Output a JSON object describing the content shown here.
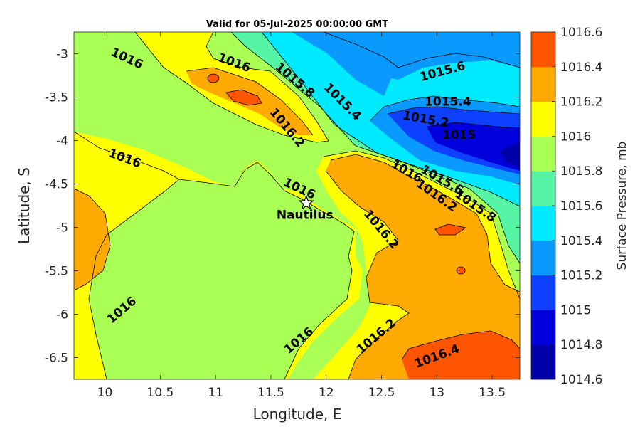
{
  "chart_data": {
    "type": "contour",
    "title": "Valid for 05-Jul-2025 00:00:00 GMT",
    "xlabel": "Longitude, E",
    "ylabel": "Latitude, S",
    "xlim": [
      9.72,
      13.75
    ],
    "ylim": [
      -6.75,
      -2.75
    ],
    "xticks": [
      "10",
      "10.5",
      "11",
      "11.5",
      "12",
      "12.5",
      "13",
      "13.5"
    ],
    "yticks": [
      "-3",
      "-3.5",
      "-4",
      "-4.5",
      "-5",
      "-5.5",
      "-6",
      "-6.5"
    ],
    "colorbar": {
      "label": "Surface Pressure, mb",
      "levels": [
        "1014.6",
        "1014.8",
        "1015",
        "1015.2",
        "1015.4",
        "1015.6",
        "1015.8",
        "1016",
        "1016.2",
        "1016.4",
        "1016.6"
      ],
      "colors": [
        "#0000a8",
        "#0000dd",
        "#0d40ff",
        "#0a99ff",
        "#00eaff",
        "#55f5a5",
        "#aaff55",
        "#ffff00",
        "#ffaa00",
        "#ff5500",
        "#ff0000"
      ]
    },
    "contour_labels": [
      {
        "text": "1016",
        "lon": 10.2,
        "lat": -3.05
      },
      {
        "text": "1016",
        "lon": 11.17,
        "lat": -3.1
      },
      {
        "text": "1015.8",
        "lon": 11.72,
        "lat": -3.3
      },
      {
        "text": "1015.4",
        "lon": 12.15,
        "lat": -3.55
      },
      {
        "text": "1015.6",
        "lon": 13.05,
        "lat": -3.2
      },
      {
        "text": "1015.4",
        "lon": 13.1,
        "lat": -3.55
      },
      {
        "text": "1015.2",
        "lon": 12.9,
        "lat": -3.75
      },
      {
        "text": "1015",
        "lon": 13.2,
        "lat": -3.93
      },
      {
        "text": "1016.2",
        "lon": 11.65,
        "lat": -3.85
      },
      {
        "text": "1016",
        "lon": 10.18,
        "lat": -4.2
      },
      {
        "text": "1016",
        "lon": 11.76,
        "lat": -4.55
      },
      {
        "text": "1016",
        "lon": 12.73,
        "lat": -4.35
      },
      {
        "text": "1015.6",
        "lon": 13.05,
        "lat": -4.45
      },
      {
        "text": "1016.2",
        "lon": 13.0,
        "lat": -4.63
      },
      {
        "text": "1015.8",
        "lon": 13.35,
        "lat": -4.75
      },
      {
        "text": "1016.2",
        "lon": 12.5,
        "lat": -5.02
      },
      {
        "text": "1016",
        "lon": 10.15,
        "lat": -5.95
      },
      {
        "text": "1016",
        "lon": 11.75,
        "lat": -6.3
      },
      {
        "text": "1016.2",
        "lon": 12.45,
        "lat": -6.25
      },
      {
        "text": "1016.4",
        "lon": 13.0,
        "lat": -6.48
      }
    ],
    "station": {
      "name": "Nautilus",
      "lon": 11.82,
      "lat": -4.72
    }
  }
}
